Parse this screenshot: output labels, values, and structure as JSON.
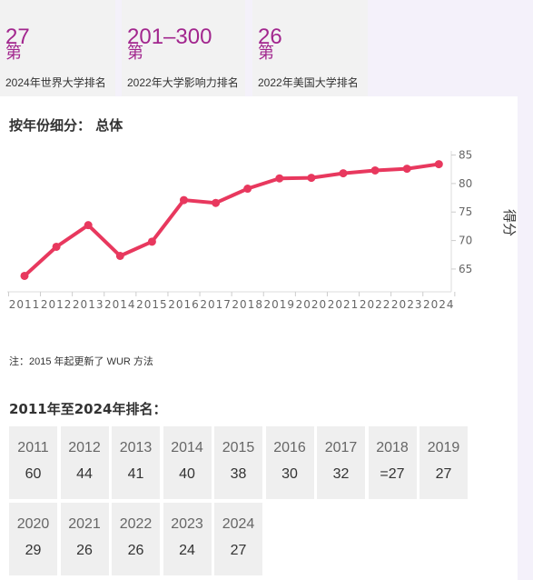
{
  "rank_cards": [
    {
      "value": "27",
      "prefix": "第",
      "label": "2024年世界大学排名"
    },
    {
      "value": "201–300",
      "prefix": "第",
      "label": "2022年大学影响力排名"
    },
    {
      "value": "26",
      "prefix": "第",
      "label": "2022年美国大学排名"
    }
  ],
  "breakdown": {
    "title": "按年份细分：  总体"
  },
  "chart_data": {
    "type": "line",
    "title": "",
    "xlabel": "",
    "ylabel": "得分",
    "x": [
      "2011",
      "2012",
      "2013",
      "2014",
      "2015",
      "2016",
      "2017",
      "2018",
      "2019",
      "2020",
      "2021",
      "2022",
      "2023",
      "2024"
    ],
    "series": [
      {
        "values": [
          63.8,
          68.9,
          72.7,
          67.3,
          69.8,
          77.1,
          76.6,
          79.1,
          80.9,
          81.0,
          81.8,
          82.3,
          82.6,
          83.4
        ]
      }
    ],
    "y_ticks": [
      65,
      70,
      75,
      80,
      85
    ],
    "ylim": [
      61,
      87
    ],
    "y_axis_position": "right",
    "grid": false,
    "line_color": "#e8385e"
  },
  "note": "注：2015 年起更新了 WUR 方法",
  "ranking_history": {
    "title": "2011年至2024年排名：",
    "rows": [
      [
        {
          "year": "2011",
          "rank": "60"
        },
        {
          "year": "2012",
          "rank": "44"
        },
        {
          "year": "2013",
          "rank": "41"
        },
        {
          "year": "2014",
          "rank": "40"
        },
        {
          "year": "2015",
          "rank": "38"
        },
        {
          "year": "2016",
          "rank": "30"
        },
        {
          "year": "2017",
          "rank": "32"
        },
        {
          "year": "2018",
          "rank": "=27"
        },
        {
          "year": "2019",
          "rank": "27"
        }
      ],
      [
        {
          "year": "2020",
          "rank": "29"
        },
        {
          "year": "2021",
          "rank": "26"
        },
        {
          "year": "2022",
          "rank": "26"
        },
        {
          "year": "2023",
          "rank": "24"
        },
        {
          "year": "2024",
          "rank": "27"
        }
      ]
    ]
  }
}
